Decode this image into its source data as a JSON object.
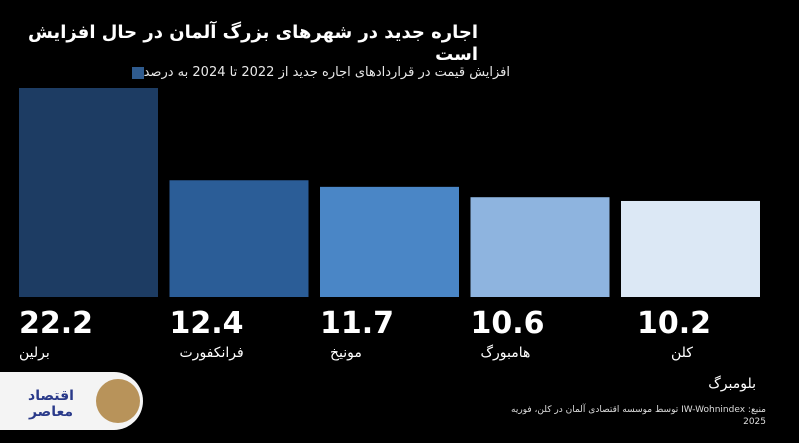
{
  "header": {
    "title": "اجاره جدید در شهرهای بزرگ آلمان در حال افزایش است",
    "legend_label": "افزایش قیمت در قراردادهای اجاره جدید از 2022 تا 2024 به درصد"
  },
  "chart_data": {
    "type": "bar",
    "title": "اجاره جدید در شهرهای بزرگ آلمان در حال افزایش است",
    "categories": [
      "برلین",
      "فرانکفورت",
      "مونیخ",
      "هامبورگ",
      "کلن"
    ],
    "values": [
      22.2,
      12.4,
      11.7,
      10.6,
      10.2
    ],
    "value_labels": [
      "22.2",
      "12.4",
      "11.7",
      "10.6",
      "10.2"
    ],
    "colors": [
      "#1d3c63",
      "#2b5d97",
      "#4a86c6",
      "#8eb4df",
      "#dce8f5"
    ],
    "series": [
      {
        "name": "افزایش قیمت در قراردادهای اجاره جدید از 2022 تا 2024 به درصد",
        "values": [
          22.2,
          12.4,
          11.7,
          10.6,
          10.2
        ]
      }
    ],
    "ylim": [
      0,
      22.2
    ],
    "grid": false,
    "legend": "top"
  },
  "footer": {
    "brand": "بلومبرگ",
    "source": "منبع: IW-Wohnindex توسط موسسه اقتصادی آلمان در کلن، فوریه 2025",
    "logo_text": "اقتصاد معاصر"
  }
}
